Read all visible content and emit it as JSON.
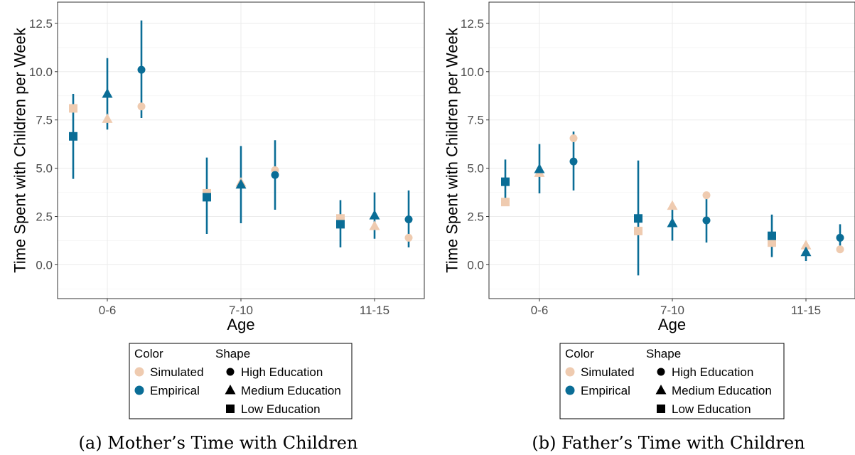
{
  "chart_data": [
    {
      "type": "scatter",
      "subtype": "point-with-error-bars",
      "caption": "(a) Mother’s Time with Children",
      "xlabel": "Age",
      "ylabel": "Time Spent with Children per Week",
      "categories": [
        "0-6",
        "7-10",
        "11-15"
      ],
      "ylim": [
        -1.75,
        13.6
      ],
      "yticks": [
        "0.0",
        "2.5",
        "5.0",
        "7.5",
        "10.0",
        "12.5"
      ],
      "grid": true,
      "series": [
        {
          "name": "Empirical",
          "education": "Low Education",
          "values": [
            6.65,
            3.5,
            2.1
          ],
          "lower": [
            4.45,
            1.6,
            0.9
          ],
          "upper": [
            8.85,
            5.55,
            3.35
          ]
        },
        {
          "name": "Empirical",
          "education": "Medium Education",
          "values": [
            8.85,
            4.15,
            2.55
          ],
          "lower": [
            7.0,
            2.15,
            1.35
          ],
          "upper": [
            10.7,
            6.15,
            3.75
          ]
        },
        {
          "name": "Empirical",
          "education": "High Education",
          "values": [
            10.1,
            4.65,
            2.35
          ],
          "lower": [
            7.6,
            2.85,
            0.9
          ],
          "upper": [
            12.65,
            6.45,
            3.85
          ]
        },
        {
          "name": "Simulated",
          "education": "Low Education",
          "values": [
            8.1,
            3.7,
            2.4
          ]
        },
        {
          "name": "Simulated",
          "education": "Medium Education",
          "values": [
            7.55,
            4.25,
            2.0
          ]
        },
        {
          "name": "Simulated",
          "education": "High Education",
          "values": [
            8.2,
            4.9,
            1.4
          ]
        }
      ]
    },
    {
      "type": "scatter",
      "subtype": "point-with-error-bars",
      "caption": "(b) Father’s Time with Children",
      "xlabel": "Age",
      "ylabel": "Time Spent with Children per Week",
      "categories": [
        "0-6",
        "7-10",
        "11-15"
      ],
      "ylim": [
        -1.75,
        13.6
      ],
      "yticks": [
        "0.0",
        "2.5",
        "5.0",
        "7.5",
        "10.0",
        "12.5"
      ],
      "grid": true,
      "series": [
        {
          "name": "Empirical",
          "education": "Low Education",
          "values": [
            4.3,
            2.4,
            1.5
          ],
          "lower": [
            3.35,
            -0.55,
            0.4
          ],
          "upper": [
            5.45,
            5.4,
            2.6
          ]
        },
        {
          "name": "Empirical",
          "education": "Medium Education",
          "values": [
            4.95,
            2.15,
            0.65
          ],
          "lower": [
            3.7,
            1.25,
            0.2
          ],
          "upper": [
            6.25,
            2.85,
            1.05
          ]
        },
        {
          "name": "Empirical",
          "education": "High Education",
          "values": [
            5.35,
            2.3,
            1.4
          ],
          "lower": [
            3.85,
            1.15,
            0.7
          ],
          "upper": [
            6.9,
            3.4,
            2.1
          ]
        },
        {
          "name": "Simulated",
          "education": "Low Education",
          "values": [
            3.25,
            1.75,
            1.15
          ]
        },
        {
          "name": "Simulated",
          "education": "Medium Education",
          "values": [
            4.75,
            3.05,
            1.0
          ]
        },
        {
          "name": "Simulated",
          "education": "High Education",
          "values": [
            6.55,
            3.6,
            0.8
          ]
        }
      ]
    }
  ],
  "legend": {
    "color_title": "Color",
    "shape_title": "Shape",
    "color_items": [
      {
        "label": "Simulated",
        "color": "#efcbb0"
      },
      {
        "label": "Empirical",
        "color": "#0a6d96"
      }
    ],
    "shape_items": [
      {
        "label": "High Education",
        "shape": "circle"
      },
      {
        "label": "Medium Education",
        "shape": "triangle"
      },
      {
        "label": "Low Education",
        "shape": "square"
      }
    ]
  },
  "colors": {
    "empirical": "#0a6d96",
    "simulated": "#efcbb0",
    "grid": "#ebebeb",
    "frame": "#333333"
  }
}
